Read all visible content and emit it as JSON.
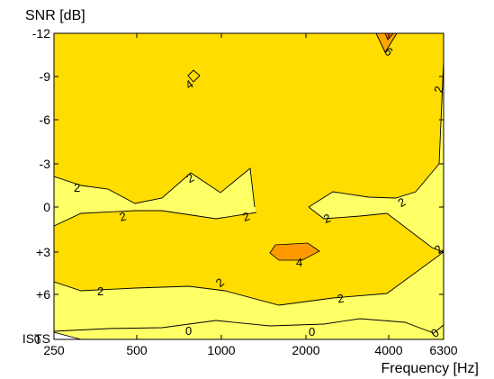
{
  "chart_data": {
    "type": "contour",
    "ylabel": "SNR [dB]",
    "xlabel": "Frequency [Hz]",
    "x_ticks": [
      "250",
      "500",
      "1000",
      "2000",
      "4000",
      "6300"
    ],
    "y_ticks": [
      "-12",
      "-9",
      "-6",
      "-3",
      "0",
      "+3",
      "+6",
      "ISTS"
    ],
    "y_tick_values": [
      -12,
      -9,
      -6,
      -3,
      0,
      3,
      6,
      9
    ],
    "contour_levels": [
      0,
      2,
      4,
      6
    ],
    "contour_labels": [
      "0",
      "0",
      "0",
      "0",
      "2",
      "2",
      "2",
      "2",
      "2",
      "2",
      "2",
      "2",
      "2",
      "2",
      "4",
      "4",
      "6"
    ],
    "fill_colors": {
      "below_0": "#ffffff",
      "0_to_2": "#ffff66",
      "2_to_4": "#ffdd00",
      "4_to_6": "#ffa500",
      "above_6": "#ff7700"
    }
  }
}
